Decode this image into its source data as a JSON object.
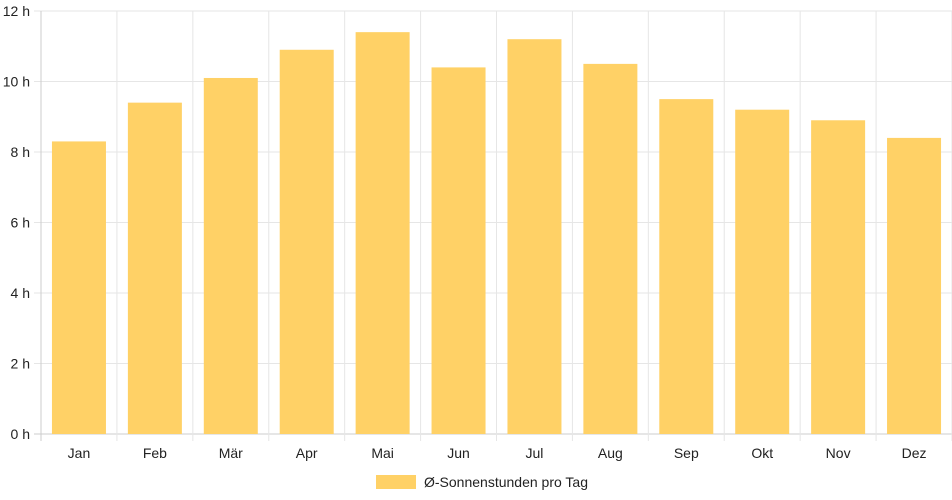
{
  "chart_data": {
    "type": "bar",
    "categories": [
      "Jan",
      "Feb",
      "Mär",
      "Apr",
      "Mai",
      "Jun",
      "Jul",
      "Aug",
      "Sep",
      "Okt",
      "Nov",
      "Dez"
    ],
    "series": [
      {
        "name": "Ø-Sonnenstunden pro Tag",
        "values": [
          8.3,
          9.4,
          10.1,
          10.9,
          11.4,
          10.4,
          11.2,
          10.5,
          9.5,
          9.2,
          8.9,
          8.4
        ]
      }
    ],
    "yticks": [
      "0 h",
      "2 h",
      "4 h",
      "6 h",
      "8 h",
      "10 h",
      "12 h"
    ],
    "ylim": [
      0,
      12
    ],
    "grid": true,
    "legend_position": "bottom",
    "colors": {
      "bar": "#FFD166",
      "grid": "#e6e6e6",
      "axis": "#cccccc"
    }
  }
}
